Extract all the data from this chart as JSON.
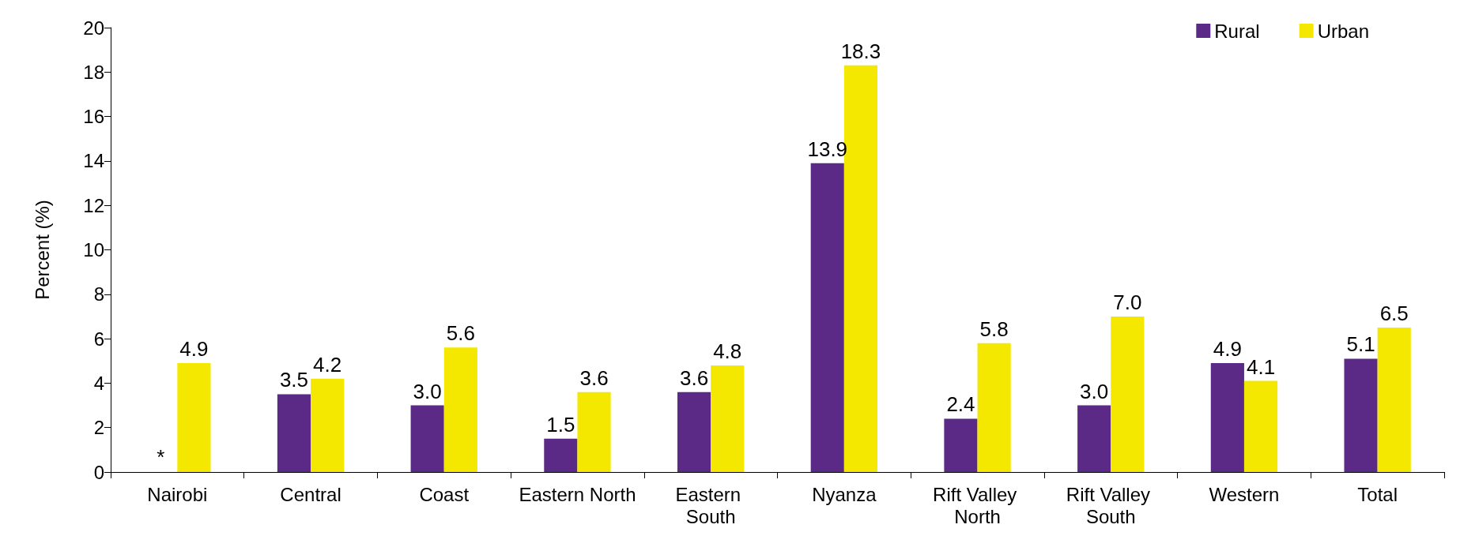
{
  "chart_data": {
    "type": "bar",
    "ylabel": "Percent (%)",
    "categories": [
      "Nairobi",
      "Central",
      "Coast",
      "Eastern North",
      "Eastern South",
      "Nyanza",
      "Rift Valley North",
      "Rift Valley South",
      "Western",
      "Total"
    ],
    "series": [
      {
        "name": "Rural",
        "color": "#5b2a86",
        "values": [
          null,
          3.5,
          3.0,
          1.5,
          3.6,
          13.9,
          2.4,
          3.0,
          4.9,
          5.1
        ],
        "value_labels": [
          "*",
          "3.5",
          "3.0",
          "1.5",
          "3.6",
          "13.9",
          "2.4",
          "3.0",
          "4.9",
          "5.1"
        ]
      },
      {
        "name": "Urban",
        "color": "#f5e800",
        "values": [
          4.9,
          4.2,
          5.6,
          3.6,
          4.8,
          18.3,
          5.8,
          7.0,
          4.1,
          6.5
        ],
        "value_labels": [
          "4.9",
          "4.2",
          "5.6",
          "3.6",
          "4.8",
          "18.3",
          "5.8",
          "7.0",
          "4.1",
          "6.5"
        ]
      }
    ],
    "ylim": [
      0,
      20
    ],
    "yticks": [
      0,
      2,
      4,
      6,
      8,
      10,
      12,
      14,
      16,
      18,
      20
    ],
    "grid": false,
    "legend": "top right"
  }
}
